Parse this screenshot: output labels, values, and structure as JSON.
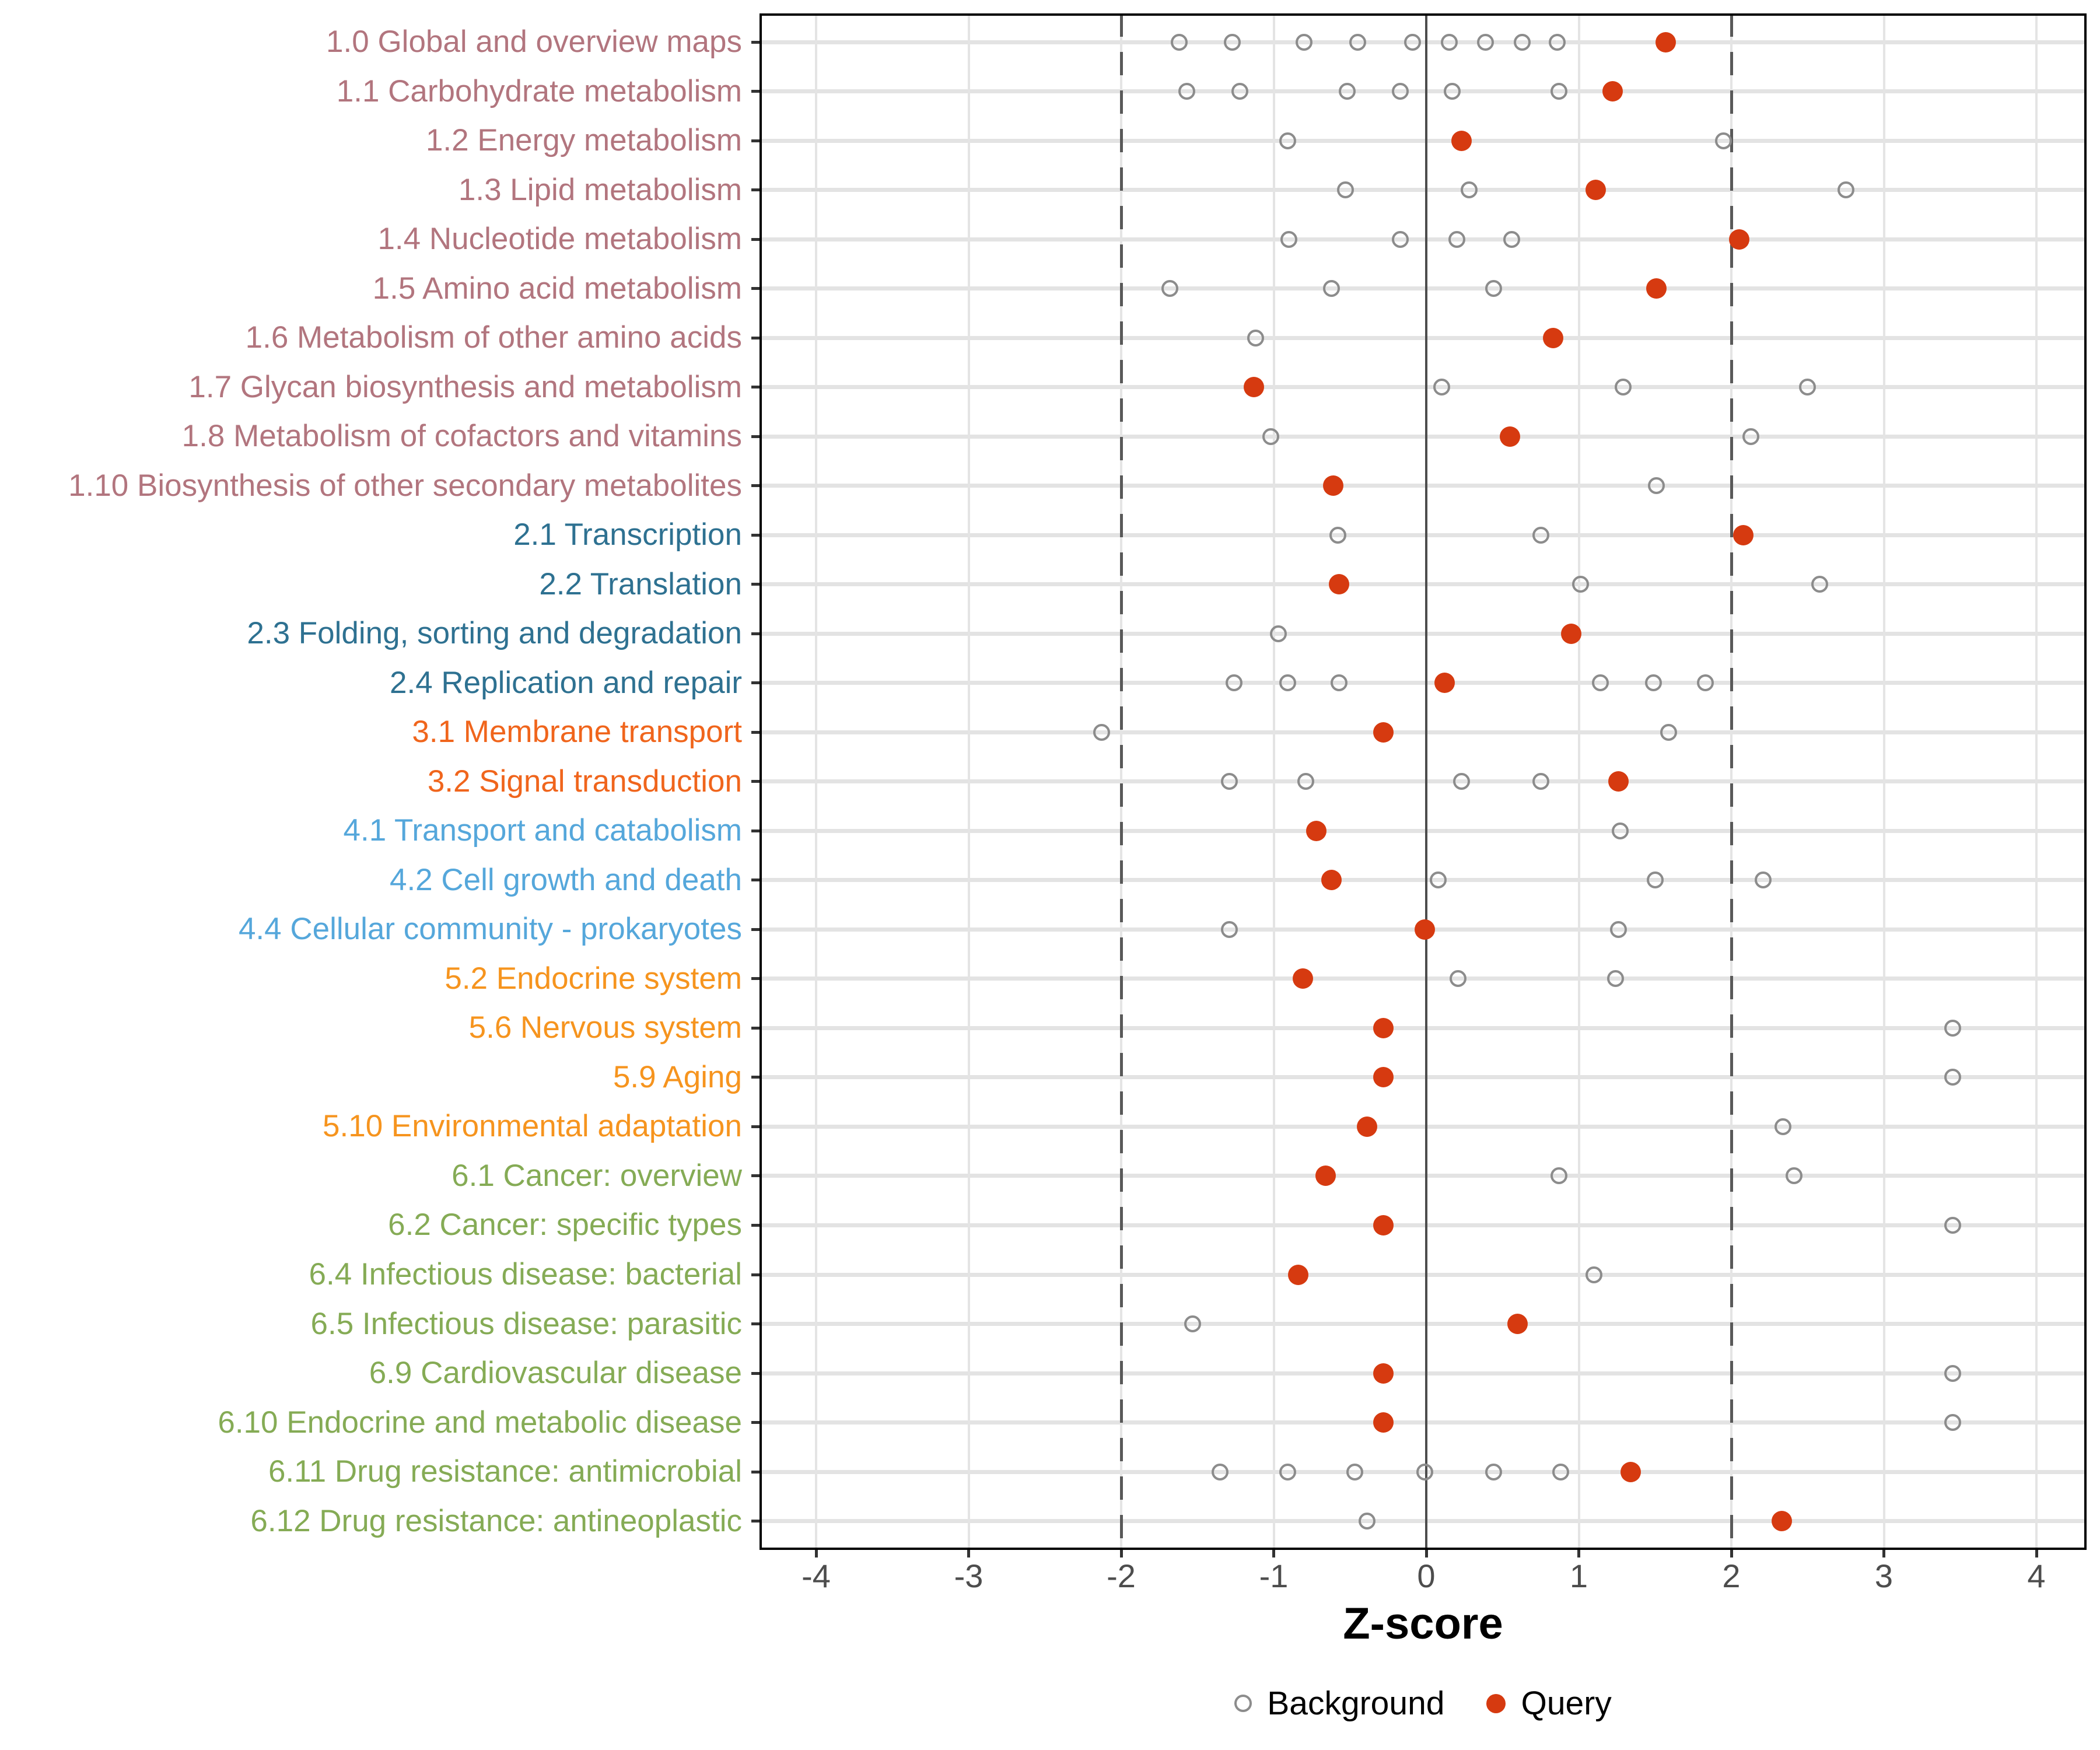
{
  "figure": {
    "background": "#ffffff"
  },
  "axis": {
    "title": "Z-score",
    "tick_labels": [
      "-4",
      "-3",
      "-2",
      "-1",
      "0",
      "1",
      "2",
      "3",
      "4"
    ]
  },
  "legend": {
    "position": "bottom",
    "background_label": "Background",
    "query_label": "Query"
  },
  "colors": {
    "query": "#d63a10",
    "background_stroke": "#8c8c8c",
    "grid": "#e3e3e3",
    "zero_line": "#4d4d4d",
    "threshold_line": "#595959",
    "tick_label": "#4d4d4d",
    "axis_title": "#000000",
    "groups": {
      "1": "#b2757e",
      "2": "#2e7191",
      "3": "#f0651c",
      "4": "#55a7db",
      "5": "#f6941e",
      "6": "#85ab55"
    }
  },
  "chart_data": {
    "type": "scatter",
    "xlabel": "Z-score",
    "ylabel": "",
    "xlim": [
      -4.35,
      4.35
    ],
    "xticks": [
      -4,
      -3,
      -2,
      -1,
      0,
      1,
      2,
      3,
      4
    ],
    "reference_lines": {
      "solid": [
        0
      ],
      "dashed": [
        -2,
        2
      ]
    },
    "grid": true,
    "legend_position": "bottom",
    "series_legend": [
      "Background",
      "Query"
    ],
    "rows": [
      {
        "label": "1.0 Global and overview maps",
        "group": "1",
        "background": [
          -1.62,
          -1.27,
          -0.8,
          -0.45,
          -0.09,
          0.15,
          0.39,
          0.63,
          0.86
        ],
        "query": 1.57
      },
      {
        "label": "1.1 Carbohydrate metabolism",
        "group": "1",
        "background": [
          -1.57,
          -1.22,
          -0.52,
          -0.17,
          0.17,
          0.87
        ],
        "query": 1.22
      },
      {
        "label": "1.2 Energy metabolism",
        "group": "1",
        "background": [
          -0.91,
          1.95
        ],
        "query": 0.23
      },
      {
        "label": "1.3 Lipid metabolism",
        "group": "1",
        "background": [
          -0.53,
          0.28,
          2.75
        ],
        "query": 1.11
      },
      {
        "label": "1.4 Nucleotide metabolism",
        "group": "1",
        "background": [
          -0.9,
          -0.17,
          0.2,
          0.56
        ],
        "query": 2.05
      },
      {
        "label": "1.5 Amino acid metabolism",
        "group": "1",
        "background": [
          -1.68,
          -0.62,
          0.44
        ],
        "query": 1.51
      },
      {
        "label": "1.6 Metabolism of other amino acids",
        "group": "1",
        "background": [
          -1.12
        ],
        "query": 0.83
      },
      {
        "label": "1.7 Glycan biosynthesis and metabolism",
        "group": "1",
        "background": [
          0.1,
          1.29,
          2.5
        ],
        "query": -1.13
      },
      {
        "label": "1.8 Metabolism of cofactors and vitamins",
        "group": "1",
        "background": [
          -1.02,
          2.13
        ],
        "query": 0.55
      },
      {
        "label": "1.10 Biosynthesis of other secondary metabolites",
        "group": "1",
        "background": [
          1.51
        ],
        "query": -0.61
      },
      {
        "label": "2.1 Transcription",
        "group": "2",
        "background": [
          -0.58,
          0.75
        ],
        "query": 2.08
      },
      {
        "label": "2.2 Translation",
        "group": "2",
        "background": [
          1.01,
          2.58
        ],
        "query": -0.57
      },
      {
        "label": "2.3 Folding, sorting and degradation",
        "group": "2",
        "background": [
          -0.97
        ],
        "query": 0.95
      },
      {
        "label": "2.4 Replication and repair",
        "group": "2",
        "background": [
          -1.26,
          -0.91,
          -0.57,
          1.14,
          1.49,
          1.83
        ],
        "query": 0.12
      },
      {
        "label": "3.1 Membrane transport",
        "group": "3",
        "background": [
          -2.13,
          1.59
        ],
        "query": -0.28
      },
      {
        "label": "3.2 Signal transduction",
        "group": "3",
        "background": [
          -1.29,
          -0.79,
          0.23,
          0.75
        ],
        "query": 1.26
      },
      {
        "label": "4.1 Transport and catabolism",
        "group": "4",
        "background": [
          1.27
        ],
        "query": -0.72
      },
      {
        "label": "4.2 Cell growth and death",
        "group": "4",
        "background": [
          0.08,
          1.5,
          2.21
        ],
        "query": -0.62
      },
      {
        "label": "4.4 Cellular community - prokaryotes",
        "group": "4",
        "background": [
          -1.29,
          1.26
        ],
        "query": -0.01
      },
      {
        "label": "5.2 Endocrine system",
        "group": "5",
        "background": [
          0.21,
          1.24
        ],
        "query": -0.81
      },
      {
        "label": "5.6 Nervous system",
        "group": "5",
        "background": [
          3.45
        ],
        "query": -0.28
      },
      {
        "label": "5.9 Aging",
        "group": "5",
        "background": [
          3.45
        ],
        "query": -0.28
      },
      {
        "label": "5.10 Environmental adaptation",
        "group": "5",
        "background": [
          2.34
        ],
        "query": -0.39
      },
      {
        "label": "6.1 Cancer: overview",
        "group": "6",
        "background": [
          0.87,
          2.41
        ],
        "query": -0.66
      },
      {
        "label": "6.2 Cancer: specific types",
        "group": "6",
        "background": [
          3.45
        ],
        "query": -0.28
      },
      {
        "label": "6.4 Infectious disease: bacterial",
        "group": "6",
        "background": [
          1.1
        ],
        "query": -0.84
      },
      {
        "label": "6.5 Infectious disease: parasitic",
        "group": "6",
        "background": [
          -1.53
        ],
        "query": 0.6
      },
      {
        "label": "6.9 Cardiovascular disease",
        "group": "6",
        "background": [
          3.45
        ],
        "query": -0.28
      },
      {
        "label": "6.10 Endocrine and metabolic disease",
        "group": "6",
        "background": [
          3.45
        ],
        "query": -0.28
      },
      {
        "label": "6.11 Drug resistance: antimicrobial",
        "group": "6",
        "background": [
          -1.35,
          -0.91,
          -0.47,
          -0.01,
          0.44,
          0.88
        ],
        "query": 1.34
      },
      {
        "label": "6.12 Drug resistance: antineoplastic",
        "group": "6",
        "background": [
          -0.39
        ],
        "query": 2.33
      }
    ]
  }
}
